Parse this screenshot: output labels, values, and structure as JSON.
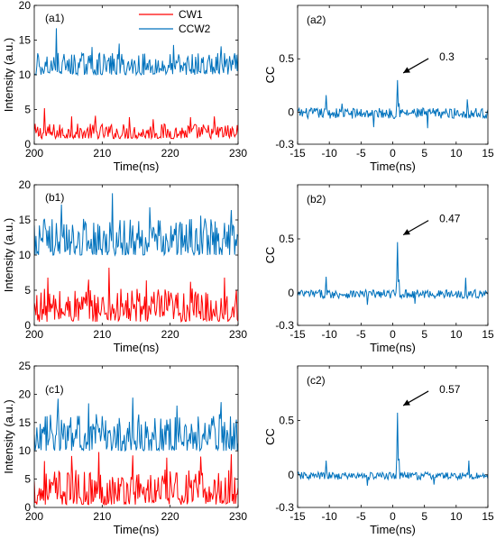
{
  "chart_data": [
    {
      "panel": "(a1)",
      "type": "line",
      "xlabel": "Time(ns)",
      "ylabel": "Intensity (a.u.)",
      "xlim": [
        200,
        230
      ],
      "ylim": [
        0,
        20
      ],
      "xticks": [
        200,
        210,
        220,
        230
      ],
      "yticks": [
        0,
        5,
        10,
        15,
        20
      ],
      "legend": {
        "placement": "top-center",
        "entries": [
          "CW1",
          "CCW2"
        ]
      },
      "series": [
        {
          "name": "CW1",
          "color": "#ff0000",
          "baseline": 0.8,
          "amplitude": 2.2,
          "peaks": [
            [
              201.5,
              5.2
            ],
            [
              205.5,
              4.0
            ],
            [
              209.0,
              4.1
            ],
            [
              214.0,
              3.9
            ],
            [
              217.5,
              3.6
            ],
            [
              223.0,
              3.9
            ],
            [
              226.5,
              4.0
            ]
          ]
        },
        {
          "name": "CCW2",
          "color": "#0072bd",
          "baseline": 10.0,
          "amplitude": 3.2,
          "peaks": [
            [
              203.3,
              16.7
            ],
            [
              208.5,
              14.0
            ],
            [
              212.5,
              14.5
            ],
            [
              220.5,
              14.3
            ],
            [
              227.5,
              14.1
            ]
          ]
        }
      ]
    },
    {
      "panel": "(a2)",
      "type": "line",
      "xlabel": "Time(ns)",
      "ylabel": "CC",
      "xlim": [
        -15,
        15
      ],
      "ylim": [
        -0.3,
        1.0
      ],
      "xticks": [
        -15,
        -10,
        -5,
        0,
        5,
        10,
        15
      ],
      "yticks": [
        -0.3,
        0,
        0.5
      ],
      "annotation": "0.3",
      "series": [
        {
          "name": "",
          "color": "#0072bd",
          "noise": 0.05,
          "peak": [
            0.8,
            0.3
          ],
          "sidepeaks": [
            [
              -10.5,
              0.16
            ],
            [
              -8.0,
              0.08
            ],
            [
              11.8,
              0.12
            ],
            [
              -3.0,
              -0.14
            ],
            [
              5.5,
              -0.15
            ]
          ]
        }
      ]
    },
    {
      "panel": "(b1)",
      "type": "line",
      "xlabel": "Time(ns)",
      "ylabel": "Intensity (a.u.)",
      "xlim": [
        200,
        230
      ],
      "ylim": [
        0,
        20
      ],
      "xticks": [
        200,
        210,
        220,
        230
      ],
      "yticks": [
        0,
        5,
        10,
        15,
        20
      ],
      "series": [
        {
          "name": "CW1",
          "color": "#ff0000",
          "baseline": 0.5,
          "amplitude": 4.8,
          "peaks": [
            [
              202.0,
              6.8
            ],
            [
              208.0,
              6.5
            ],
            [
              211.0,
              8.2
            ],
            [
              216.5,
              6.4
            ],
            [
              223.0,
              6.2
            ],
            [
              228.0,
              6.8
            ]
          ]
        },
        {
          "name": "CCW2",
          "color": "#0072bd",
          "baseline": 10.0,
          "amplitude": 5.2,
          "peaks": [
            [
              204.0,
              17.2
            ],
            [
              211.5,
              18.8
            ],
            [
              217.0,
              16.8
            ],
            [
              224.5,
              15.6
            ],
            [
              229.0,
              16.4
            ]
          ]
        }
      ]
    },
    {
      "panel": "(b2)",
      "type": "line",
      "xlabel": "Time(ns)",
      "ylabel": "CC",
      "xlim": [
        -15,
        15
      ],
      "ylim": [
        -0.3,
        1.0
      ],
      "xticks": [
        -15,
        -10,
        -5,
        0,
        5,
        10,
        15
      ],
      "yticks": [
        -0.3,
        0,
        0.5
      ],
      "annotation": "0.47",
      "series": [
        {
          "name": "",
          "color": "#0072bd",
          "noise": 0.04,
          "peak": [
            0.8,
            0.47
          ],
          "sidepeaks": [
            [
              -10.5,
              0.15
            ],
            [
              11.5,
              0.14
            ],
            [
              -4.0,
              -0.11
            ],
            [
              3.5,
              -0.1
            ]
          ]
        }
      ]
    },
    {
      "panel": "(c1)",
      "type": "line",
      "xlabel": "Time(ns)",
      "ylabel": "Intensity (a.u.)",
      "xlim": [
        200,
        230
      ],
      "ylim": [
        0,
        25
      ],
      "xticks": [
        200,
        210,
        220,
        230
      ],
      "yticks": [
        0,
        5,
        10,
        15,
        20,
        25
      ],
      "series": [
        {
          "name": "CW1",
          "color": "#ff0000",
          "baseline": 0.5,
          "amplitude": 6.2,
          "peaks": [
            [
              201.5,
              8.2
            ],
            [
              205.5,
              9.1
            ],
            [
              209.5,
              9.8
            ],
            [
              214.5,
              9.2
            ],
            [
              219.5,
              8.8
            ],
            [
              224.5,
              9.0
            ],
            [
              229.0,
              9.4
            ]
          ]
        },
        {
          "name": "CCW2",
          "color": "#0072bd",
          "baseline": 10.0,
          "amplitude": 6.5,
          "peaks": [
            [
              203.5,
              19.2
            ],
            [
              208.0,
              18.4
            ],
            [
              214.5,
              19.4
            ],
            [
              221.0,
              18.0
            ],
            [
              227.5,
              18.6
            ]
          ]
        }
      ]
    },
    {
      "panel": "(c2)",
      "type": "line",
      "xlabel": "Time(ns)",
      "ylabel": "CC",
      "xlim": [
        -15,
        15
      ],
      "ylim": [
        -0.3,
        1.0
      ],
      "xticks": [
        -15,
        -10,
        -5,
        0,
        5,
        10,
        15
      ],
      "yticks": [
        -0.3,
        0,
        0.5
      ],
      "annotation": "0.57",
      "series": [
        {
          "name": "",
          "color": "#0072bd",
          "noise": 0.035,
          "peak": [
            0.8,
            0.57
          ],
          "sidepeaks": [
            [
              -10.5,
              0.13
            ],
            [
              12.0,
              0.13
            ],
            [
              -4.0,
              -0.1
            ],
            [
              6.5,
              -0.09
            ]
          ]
        }
      ]
    }
  ]
}
